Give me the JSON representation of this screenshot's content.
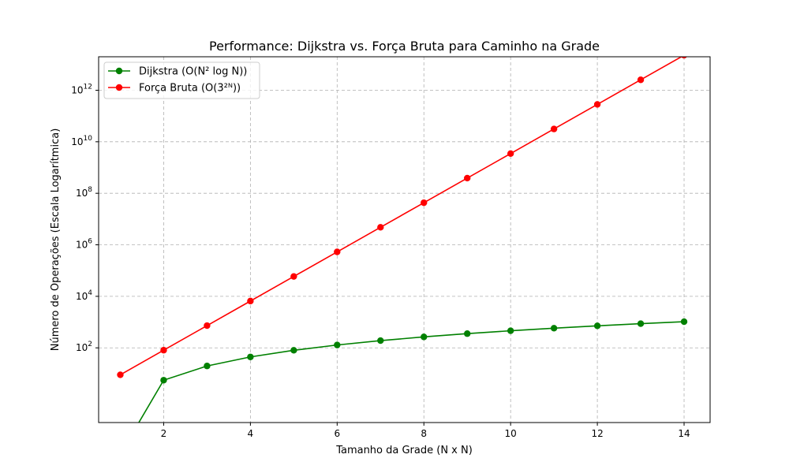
{
  "chart_data": {
    "type": "line",
    "title": "Performance: Dijkstra vs. Força Bruta para Caminho na Grade",
    "xlabel": "Tamanho da Grade (N x N)",
    "ylabel": "Número de Operações (Escala Logarítmica)",
    "yscale": "log",
    "grid": true,
    "legend_position": "top-left",
    "xlim": [
      0.5,
      14.6
    ],
    "ylim_log10": [
      -0.9,
      13.3
    ],
    "x_ticks": [
      2,
      4,
      6,
      8,
      10,
      12,
      14
    ],
    "x_tick_labels": [
      "2",
      "4",
      "6",
      "8",
      "10",
      "12",
      "14"
    ],
    "y_tick_exponents": [
      2,
      4,
      6,
      8,
      10,
      12
    ],
    "y_tick_base": "10",
    "series": [
      {
        "name": "Dijkstra (O(N² log N))",
        "color": "#008000",
        "x": [
          1,
          2,
          3,
          4,
          5,
          6,
          7,
          8,
          9,
          10,
          11,
          12,
          13,
          14
        ],
        "y": [
          0,
          5.55,
          19.78,
          44.36,
          80.47,
          129.0,
          190.69,
          266.17,
          355.95,
          460.52,
          580.29,
          715.64,
          867.0,
          1034.6
        ]
      },
      {
        "name": "Força Bruta (O(3²ᴺ))",
        "color": "#ff0000",
        "x": [
          1,
          2,
          3,
          4,
          5,
          6,
          7,
          8,
          9,
          10,
          11,
          12,
          13,
          14
        ],
        "y": [
          9,
          81,
          729,
          6561,
          59049,
          531441,
          4782969,
          43046721,
          387420489,
          3486784401,
          31381059609,
          282429536481,
          2541865828329,
          22876792454961
        ]
      }
    ]
  }
}
